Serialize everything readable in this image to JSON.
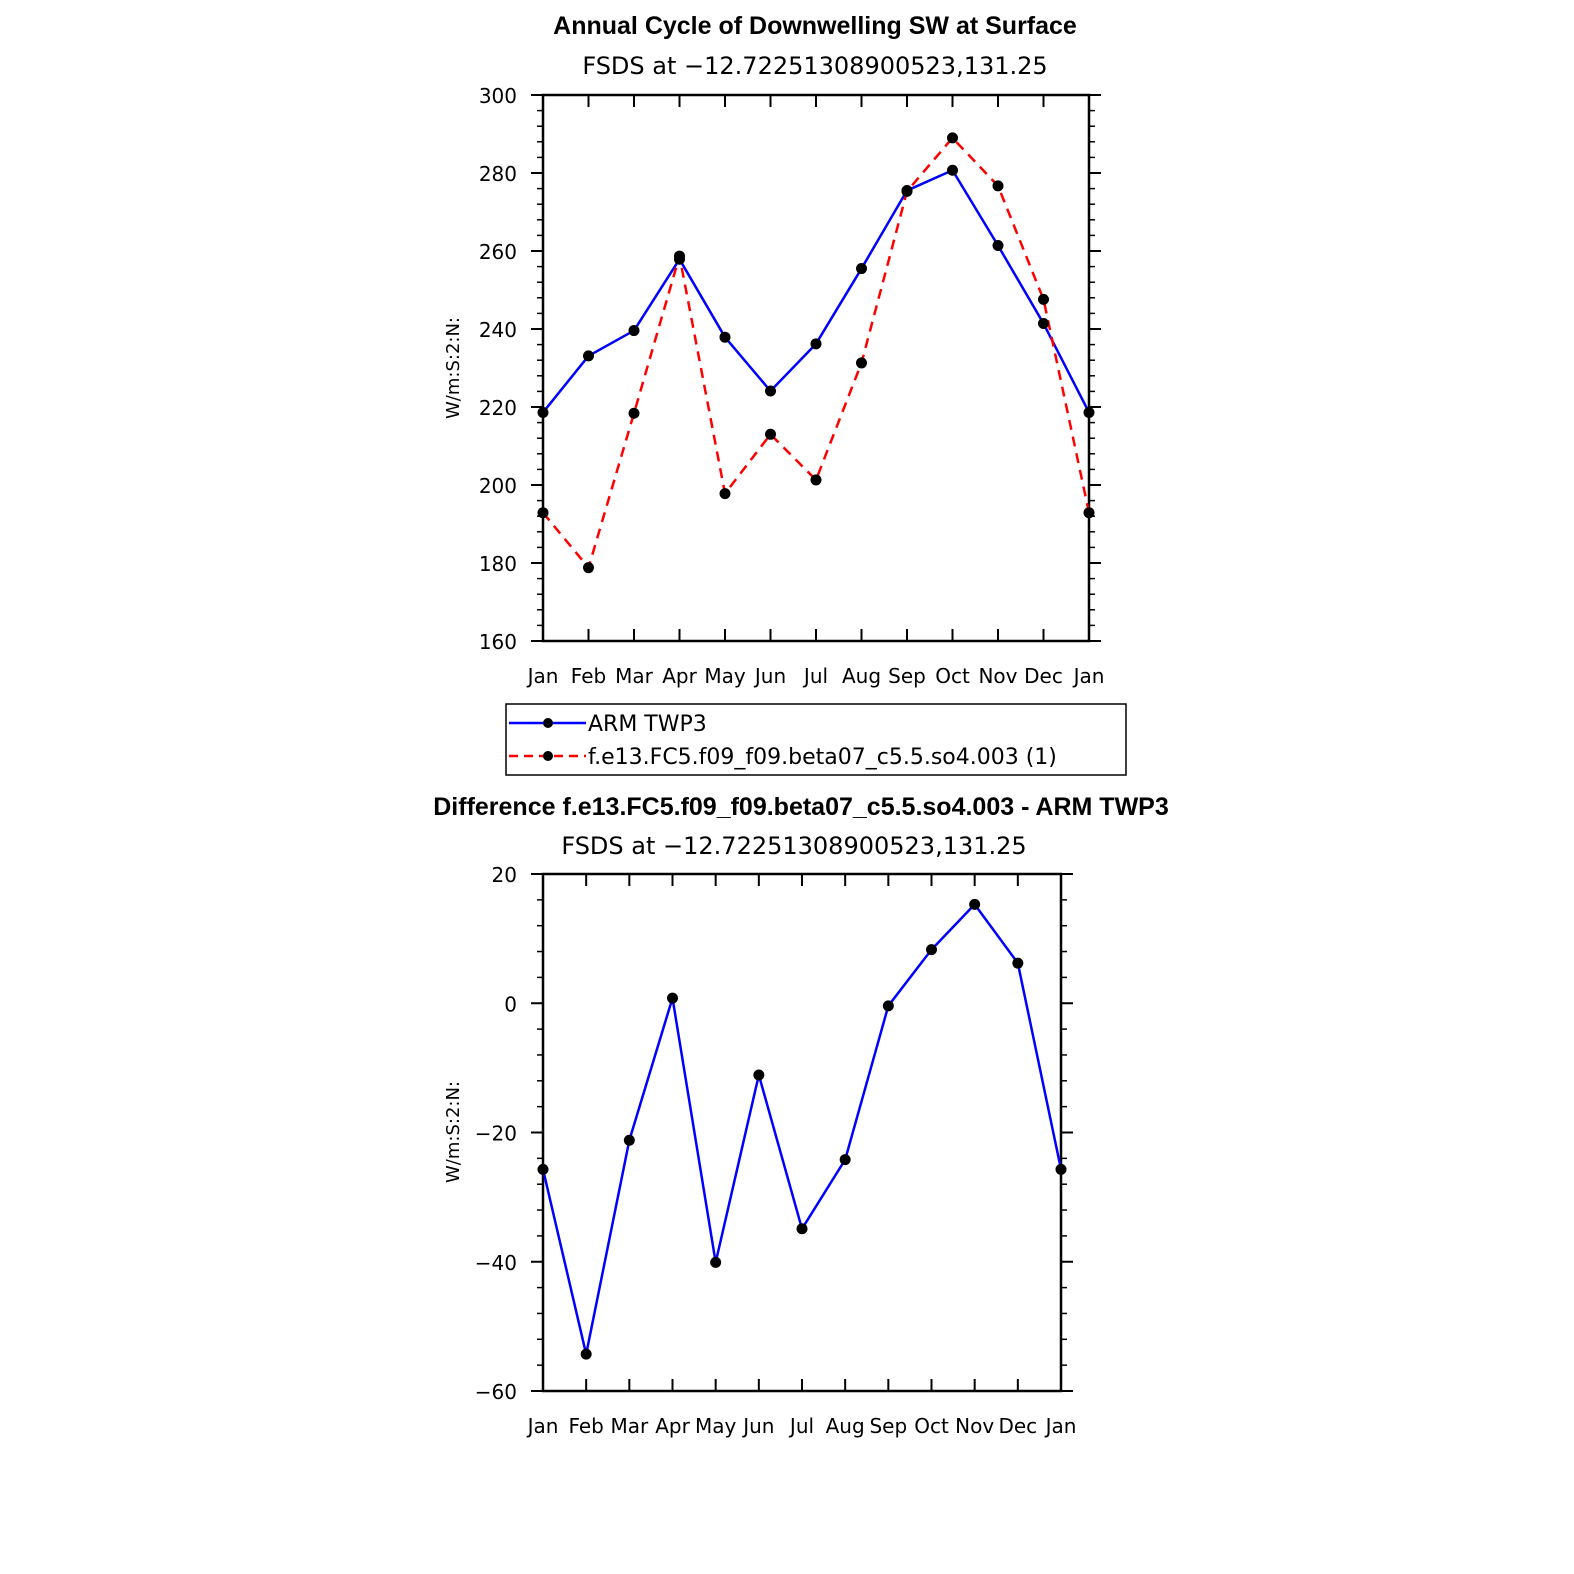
{
  "chart_data": [
    {
      "type": "line",
      "title": "Annual Cycle of Downwelling SW at Surface",
      "subtitle": "FSDS at −12.72251308900523,131.25",
      "ylabel": "W/m:S:2:N:",
      "xlabel": "",
      "ylim": [
        160,
        300
      ],
      "yticks": [
        160,
        180,
        200,
        220,
        240,
        260,
        280,
        300
      ],
      "categories": [
        "Jan",
        "Feb",
        "Mar",
        "Apr",
        "May",
        "Jun",
        "Jul",
        "Aug",
        "Sep",
        "Oct",
        "Nov",
        "Dec",
        "Jan"
      ],
      "legend_position": "below",
      "series": [
        {
          "name": "ARM TWP3",
          "color": "#0000ff",
          "dash": "solid",
          "values": [
            218.6,
            233.1,
            239.6,
            257.9,
            237.9,
            224.1,
            236.2,
            255.5,
            275.5,
            280.7,
            261.4,
            241.4,
            218.6
          ]
        },
        {
          "name": "f.e13.FC5.f09_f09.beta07_c5.5.so4.003 (1)",
          "color": "#ff0000",
          "dash": "dashed",
          "values": [
            192.9,
            178.8,
            218.4,
            258.7,
            197.8,
            213.0,
            201.3,
            231.3,
            275.3,
            289.0,
            276.7,
            247.6,
            192.9
          ]
        }
      ]
    },
    {
      "type": "line",
      "title": "Difference f.e13.FC5.f09_f09.beta07_c5.5.so4.003 - ARM TWP3",
      "subtitle": "FSDS at −12.72251308900523,131.25",
      "ylabel": "W/m:S:2:N:",
      "xlabel": "",
      "ylim": [
        -60,
        20
      ],
      "yticks": [
        -60,
        -40,
        -20,
        0,
        20
      ],
      "ytick_labels": [
        "−60",
        "−40",
        "−20",
        "0",
        "20"
      ],
      "categories": [
        "Jan",
        "Feb",
        "Mar",
        "Apr",
        "May",
        "Jun",
        "Jul",
        "Aug",
        "Sep",
        "Oct",
        "Nov",
        "Dec",
        "Jan"
      ],
      "series": [
        {
          "name": "Difference",
          "color": "#0000ff",
          "dash": "solid",
          "values": [
            -25.7,
            -54.3,
            -21.2,
            0.8,
            -40.1,
            -11.1,
            -34.9,
            -24.2,
            -0.4,
            8.3,
            15.3,
            6.2,
            -25.7
          ]
        }
      ]
    }
  ]
}
